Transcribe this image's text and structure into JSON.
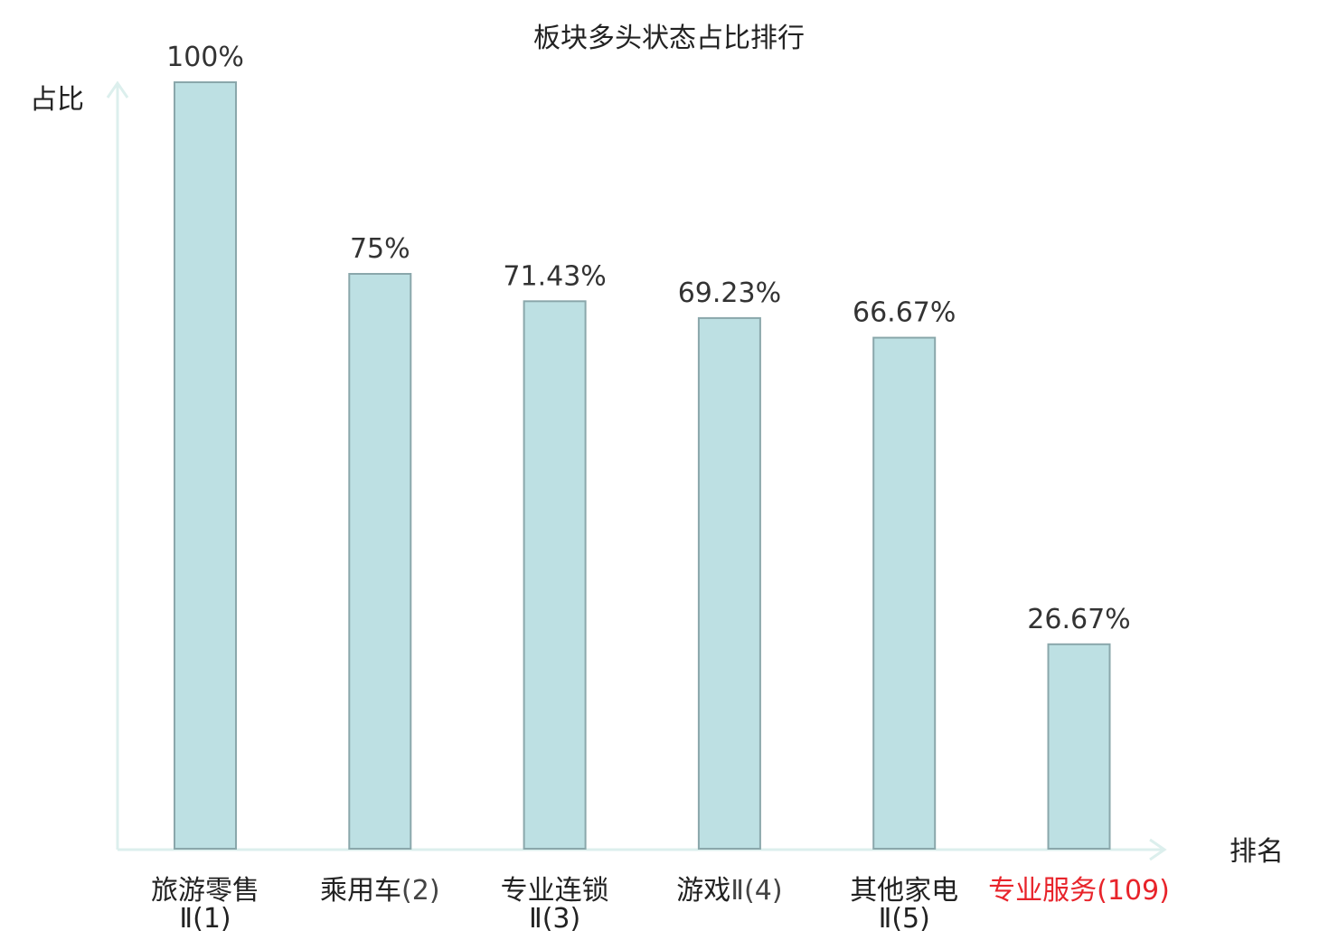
{
  "chart_data": {
    "type": "bar",
    "title": "板块多头状态占比排行",
    "xlabel": "排名",
    "ylabel": "占比",
    "categories": [
      {
        "name": "旅游零售",
        "suffix": "Ⅱ(1)",
        "wrap": true,
        "highlight": false
      },
      {
        "name": "乘用车",
        "suffix": "(2)",
        "wrap": false,
        "highlight": false
      },
      {
        "name": "专业连锁",
        "suffix": "Ⅱ(3)",
        "wrap": true,
        "highlight": false
      },
      {
        "name": "游戏",
        "suffix": "Ⅱ(4)",
        "wrap": false,
        "highlight": false
      },
      {
        "name": "其他家电",
        "suffix": "Ⅱ(5)",
        "wrap": true,
        "highlight": false
      },
      {
        "name": "专业服务",
        "suffix": "(109)",
        "wrap": false,
        "highlight": true
      }
    ],
    "values": [
      100,
      75,
      71.43,
      69.23,
      66.67,
      26.67
    ],
    "value_labels": [
      "100%",
      "75%",
      "71.43%",
      "69.23%",
      "66.67%",
      "26.67%"
    ],
    "ylim": [
      0,
      100
    ],
    "grid": false,
    "legend": "none",
    "colors": {
      "bar_fill": "#bde0e3",
      "bar_stroke": "#8aa7ab",
      "axis": "#dcefed",
      "text": "#222222",
      "value_text": "#333333",
      "suffix_text": "#444444",
      "highlight": "#e8242b"
    }
  }
}
